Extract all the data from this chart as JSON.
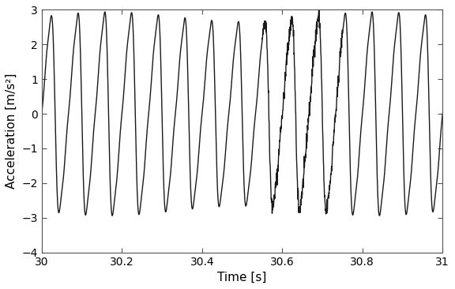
{
  "title": "",
  "xlabel": "Time [s]",
  "ylabel": "Acceleration [m/s²]",
  "xlim": [
    30,
    31
  ],
  "ylim": [
    -4,
    3
  ],
  "yticks": [
    -4,
    -3,
    -2,
    -1,
    0,
    1,
    2,
    3
  ],
  "xticks": [
    30,
    30.2,
    30.4,
    30.6,
    30.8,
    31
  ],
  "xtick_labels": [
    "30",
    "30.2",
    "30.4",
    "30.6",
    "30.8",
    "31"
  ],
  "line_color": "#1a1a1a",
  "line_width": 1.0,
  "bg_color": "#ffffff",
  "frequency": 15.0,
  "sample_rate": 2000,
  "t_start": 30.0,
  "t_end": 31.0
}
